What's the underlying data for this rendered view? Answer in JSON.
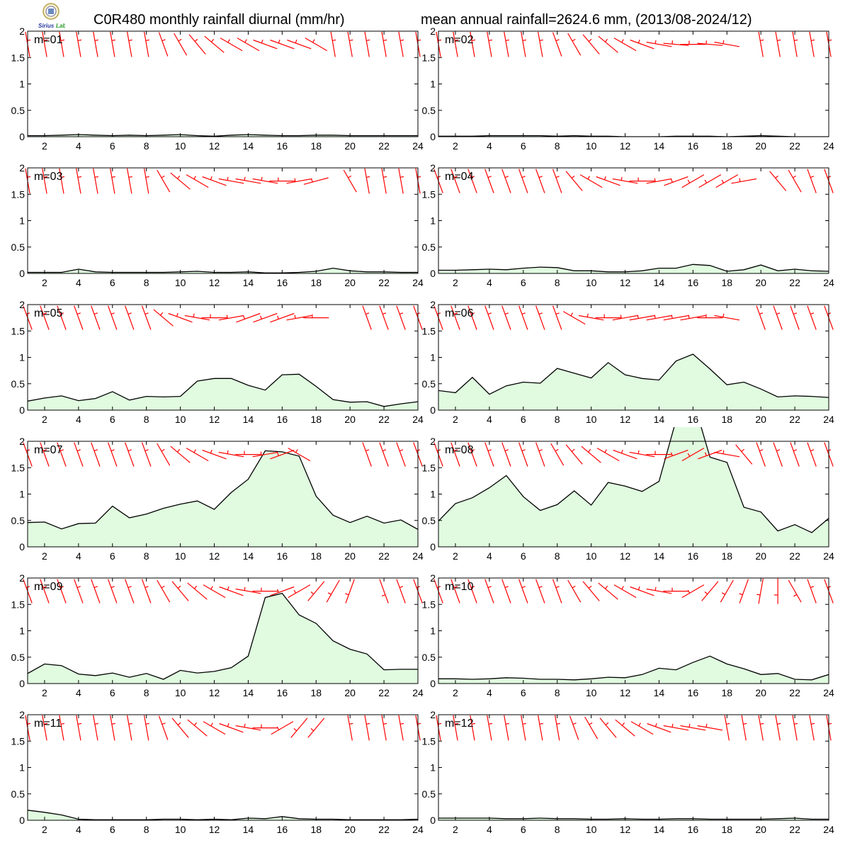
{
  "header": {
    "title_left": "C0R480 monthly rainfall diurnal (mm/hr)",
    "title_right": "mean annual rainfall=2624.6 mm, (2013/08-2024/12)",
    "logo_text": "Sirius Lab"
  },
  "colors": {
    "fill": "#e0fbe0",
    "line": "#000000",
    "wind": "#ff0000",
    "axis": "#000000"
  },
  "chart_data": {
    "type": "area",
    "layout": "grid 6 rows x 2 columns of small multiples",
    "x": [
      1,
      2,
      3,
      4,
      5,
      6,
      7,
      8,
      9,
      10,
      11,
      12,
      13,
      14,
      15,
      16,
      17,
      18,
      19,
      20,
      21,
      22,
      23,
      24
    ],
    "xlim": [
      1,
      24
    ],
    "x_ticks": [
      "2",
      "4",
      "6",
      "8",
      "10",
      "12",
      "14",
      "16",
      "18",
      "20",
      "22",
      "24"
    ],
    "ylim": [
      0,
      2
    ],
    "y_ticks": [
      "0",
      "0.5",
      "1",
      "1.5",
      "2"
    ],
    "grid": false,
    "overlay": "red wind-barb symbols plotted near the top of each panel",
    "panels": [
      {
        "label": "m=01",
        "values": [
          0.02,
          0.02,
          0.03,
          0.04,
          0.03,
          0.02,
          0.03,
          0.02,
          0.03,
          0.04,
          0.02,
          0.01,
          0.03,
          0.04,
          0.03,
          0.02,
          0.02,
          0.03,
          0.03,
          0.02,
          0.02,
          0.02,
          0.02,
          0.02
        ],
        "wind_dir": [
          350,
          350,
          350,
          350,
          350,
          350,
          350,
          350,
          340,
          330,
          320,
          310,
          300,
          300,
          290,
          290,
          290,
          300,
          350,
          350,
          350,
          350,
          350,
          350
        ]
      },
      {
        "label": "m=02",
        "values": [
          0.01,
          0.01,
          0.01,
          0.02,
          0.02,
          0.02,
          0.02,
          0.01,
          0.02,
          0.01,
          0.01,
          0.0,
          0.0,
          0.0,
          0.01,
          0.01,
          0.01,
          0.0,
          0.01,
          0.02,
          0.01,
          0.0,
          0.0,
          0.0
        ],
        "wind_dir": [
          350,
          350,
          350,
          350,
          350,
          350,
          350,
          340,
          330,
          320,
          310,
          300,
          290,
          280,
          275,
          270,
          275,
          280,
          330,
          350,
          350,
          350,
          350,
          350
        ],
        "wind_missing": [
          18
        ]
      },
      {
        "label": "m=03",
        "values": [
          0.02,
          0.02,
          0.02,
          0.08,
          0.03,
          0.02,
          0.02,
          0.02,
          0.02,
          0.03,
          0.04,
          0.02,
          0.02,
          0.03,
          0.01,
          0.01,
          0.02,
          0.04,
          0.1,
          0.05,
          0.03,
          0.03,
          0.02,
          0.02
        ],
        "wind_dir": [
          350,
          350,
          350,
          350,
          350,
          350,
          350,
          350,
          330,
          310,
          300,
          290,
          280,
          280,
          280,
          270,
          260,
          255,
          265,
          330,
          350,
          350,
          350,
          350
        ],
        "wind_missing": [
          18
        ]
      },
      {
        "label": "m=04",
        "values": [
          0.06,
          0.06,
          0.07,
          0.08,
          0.07,
          0.1,
          0.12,
          0.11,
          0.05,
          0.05,
          0.03,
          0.03,
          0.05,
          0.1,
          0.1,
          0.17,
          0.15,
          0.04,
          0.07,
          0.16,
          0.05,
          0.08,
          0.05,
          0.04
        ],
        "wind_dir": [
          340,
          340,
          340,
          340,
          340,
          340,
          340,
          340,
          320,
          300,
          290,
          280,
          270,
          260,
          250,
          240,
          240,
          240,
          260,
          300,
          320,
          330,
          340,
          340
        ],
        "wind_missing": [
          19
        ]
      },
      {
        "label": "m=05",
        "values": [
          0.17,
          0.23,
          0.27,
          0.18,
          0.22,
          0.35,
          0.19,
          0.26,
          0.25,
          0.26,
          0.55,
          0.6,
          0.6,
          0.47,
          0.38,
          0.67,
          0.68,
          0.45,
          0.2,
          0.15,
          0.16,
          0.07,
          0.12,
          0.16
        ],
        "wind_dir": [
          340,
          340,
          340,
          340,
          340,
          340,
          340,
          340,
          310,
          290,
          280,
          270,
          260,
          250,
          250,
          250,
          260,
          270,
          280,
          340,
          340,
          340,
          340,
          340
        ],
        "wind_missing": [
          18,
          19
        ]
      },
      {
        "label": "m=06",
        "values": [
          0.37,
          0.33,
          0.62,
          0.3,
          0.46,
          0.53,
          0.51,
          0.79,
          0.7,
          0.61,
          0.9,
          0.67,
          0.6,
          0.57,
          0.93,
          1.06,
          0.78,
          0.48,
          0.53,
          0.4,
          0.25,
          0.27,
          0.26,
          0.24
        ],
        "wind_dir": [
          340,
          340,
          340,
          340,
          340,
          340,
          340,
          340,
          300,
          280,
          270,
          260,
          260,
          260,
          260,
          260,
          270,
          280,
          300,
          340,
          340,
          340,
          340,
          340
        ],
        "wind_missing": [
          18
        ]
      },
      {
        "label": "m=07",
        "values": [
          0.46,
          0.47,
          0.34,
          0.44,
          0.45,
          0.77,
          0.55,
          0.62,
          0.73,
          0.81,
          0.87,
          0.71,
          1.03,
          1.28,
          1.82,
          1.8,
          1.72,
          0.96,
          0.6,
          0.46,
          0.58,
          0.45,
          0.51,
          0.33
        ],
        "wind_dir": [
          340,
          340,
          340,
          340,
          340,
          340,
          340,
          340,
          330,
          310,
          300,
          290,
          280,
          270,
          260,
          250,
          300,
          0,
          0,
          0,
          340,
          340,
          340,
          340
        ],
        "wind_missing": [
          17,
          18,
          19
        ]
      },
      {
        "label": "m=08",
        "values": [
          0.49,
          0.82,
          0.93,
          1.12,
          1.35,
          0.95,
          0.69,
          0.8,
          1.06,
          0.79,
          1.22,
          1.15,
          1.05,
          1.24,
          2.4,
          2.8,
          1.7,
          1.6,
          0.75,
          0.66,
          0.3,
          0.42,
          0.27,
          0.54
        ],
        "wind_dir": [
          340,
          340,
          340,
          340,
          340,
          340,
          340,
          330,
          320,
          310,
          300,
          290,
          280,
          270,
          250,
          240,
          250,
          280,
          320,
          340,
          340,
          340,
          340,
          340
        ]
      },
      {
        "label": "m=09",
        "values": [
          0.19,
          0.37,
          0.34,
          0.18,
          0.15,
          0.2,
          0.12,
          0.19,
          0.08,
          0.25,
          0.2,
          0.23,
          0.3,
          0.52,
          1.63,
          1.71,
          1.3,
          1.14,
          0.81,
          0.65,
          0.56,
          0.26,
          0.27,
          0.27
        ],
        "wind_dir": [
          340,
          340,
          340,
          340,
          340,
          340,
          340,
          340,
          330,
          320,
          310,
          300,
          290,
          280,
          270,
          250,
          240,
          220,
          210,
          200,
          180,
          160,
          340,
          340
        ],
        "wind_missing": [
          20
        ]
      },
      {
        "label": "m=10",
        "values": [
          0.09,
          0.09,
          0.08,
          0.09,
          0.11,
          0.1,
          0.08,
          0.08,
          0.07,
          0.09,
          0.12,
          0.11,
          0.17,
          0.29,
          0.26,
          0.4,
          0.52,
          0.37,
          0.28,
          0.17,
          0.19,
          0.08,
          0.07,
          0.17
        ],
        "wind_dir": [
          340,
          340,
          340,
          340,
          340,
          340,
          340,
          340,
          330,
          320,
          310,
          300,
          290,
          280,
          270,
          240,
          220,
          210,
          200,
          190,
          180,
          150,
          340,
          340
        ]
      },
      {
        "label": "m=11",
        "values": [
          0.19,
          0.15,
          0.1,
          0.02,
          0.01,
          0.01,
          0.01,
          0.01,
          0.02,
          0.02,
          0.01,
          0.02,
          0.01,
          0.04,
          0.03,
          0.07,
          0.03,
          0.02,
          0.02,
          0.01,
          0.01,
          0.01,
          0.01,
          0.02
        ],
        "wind_dir": [
          350,
          350,
          350,
          350,
          350,
          350,
          350,
          350,
          340,
          320,
          310,
          300,
          290,
          280,
          270,
          240,
          220,
          220,
          350,
          350,
          350,
          350,
          350,
          350
        ],
        "wind_missing": [
          18
        ]
      },
      {
        "label": "m=12",
        "values": [
          0.04,
          0.04,
          0.04,
          0.04,
          0.03,
          0.03,
          0.04,
          0.03,
          0.03,
          0.02,
          0.02,
          0.03,
          0.02,
          0.02,
          0.03,
          0.03,
          0.02,
          0.02,
          0.02,
          0.02,
          0.03,
          0.04,
          0.02,
          0.02
        ],
        "wind_dir": [
          350,
          350,
          350,
          350,
          350,
          350,
          350,
          350,
          340,
          330,
          320,
          310,
          300,
          290,
          280,
          280,
          280,
          350,
          350,
          350,
          350,
          350,
          350,
          350
        ]
      }
    ]
  }
}
